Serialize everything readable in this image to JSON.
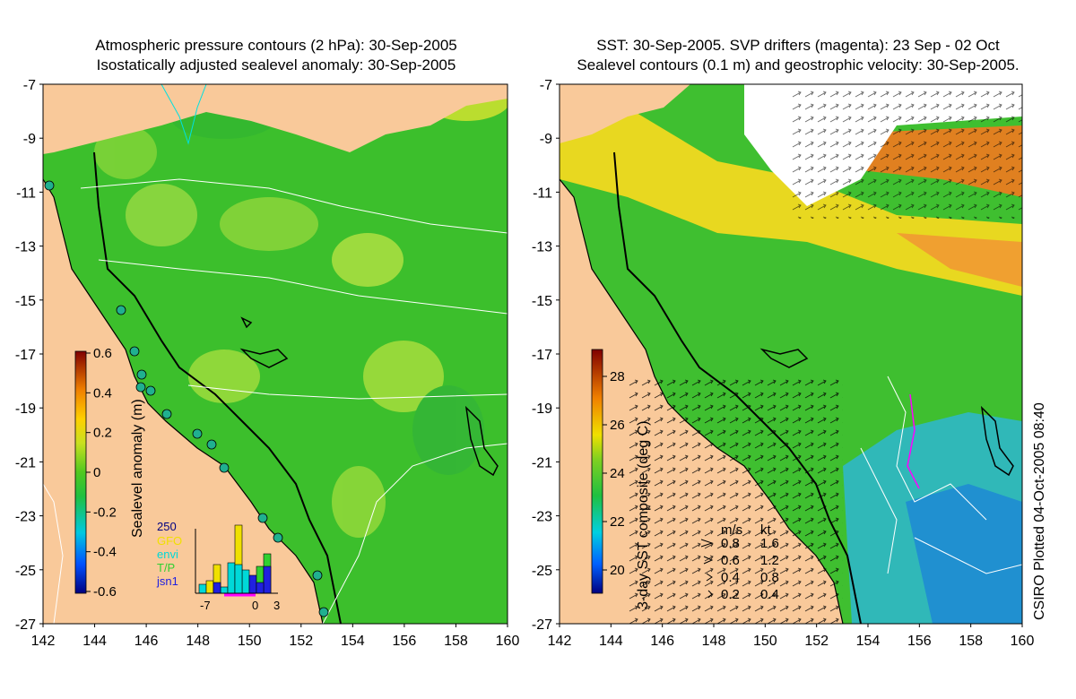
{
  "left_panel": {
    "title_line1": "Atmospheric pressure contours (2 hPa): 30-Sep-2005",
    "title_line2": "Isostatically adjusted sealevel anomaly: 30-Sep-2005",
    "colorbar": {
      "label": "Sealevel anomaly (m)",
      "ticks": [
        "0.6",
        "0.4",
        "0.2",
        "0",
        "-0.2",
        "-0.4",
        "-0.6"
      ],
      "range": [
        -0.6,
        0.6
      ]
    },
    "histogram": {
      "count_label": "250",
      "series": [
        {
          "name": "GFO",
          "color": "#f0e000"
        },
        {
          "name": "envi",
          "color": "#00d8d8"
        },
        {
          "name": "T/P",
          "color": "#30d030"
        },
        {
          "name": "jsn1",
          "color": "#2020e0"
        }
      ],
      "x_ticks": [
        "-7",
        "0",
        "3"
      ]
    }
  },
  "right_panel": {
    "title_line1": "SST: 30-Sep-2005. SVP drifters (magenta): 23 Sep - 02 Oct",
    "title_line2": "Sealevel contours (0.1 m) and geostrophic velocity: 30-Sep-2005.",
    "colorbar": {
      "label": "3-day SST composite (deg C)",
      "ticks": [
        "28",
        "26",
        "24",
        "22",
        "20"
      ],
      "range": [
        19,
        30
      ]
    },
    "velocity_legend": {
      "header_ms": "m/s",
      "header_kt": "kt",
      "rows": [
        {
          "ms": "0.8",
          "kt": "1.6"
        },
        {
          "ms": "0.6",
          "kt": "1.2"
        },
        {
          "ms": "0.4",
          "kt": "0.8"
        },
        {
          "ms": "0.2",
          "kt": "0.4"
        }
      ]
    }
  },
  "axes": {
    "lat_ticks": [
      "-7",
      "-9",
      "-11",
      "-13",
      "-15",
      "-17",
      "-19",
      "-21",
      "-23",
      "-25",
      "-27"
    ],
    "lon_ticks": [
      "142",
      "144",
      "146",
      "148",
      "150",
      "152",
      "154",
      "156",
      "158",
      "160"
    ]
  },
  "credit": "CSIRO Plotted 04-Oct-2005 08:40",
  "colors": {
    "land": "#f9c99a",
    "ocean_green": "#3fbf2a",
    "light_green": "#8fd83a"
  }
}
